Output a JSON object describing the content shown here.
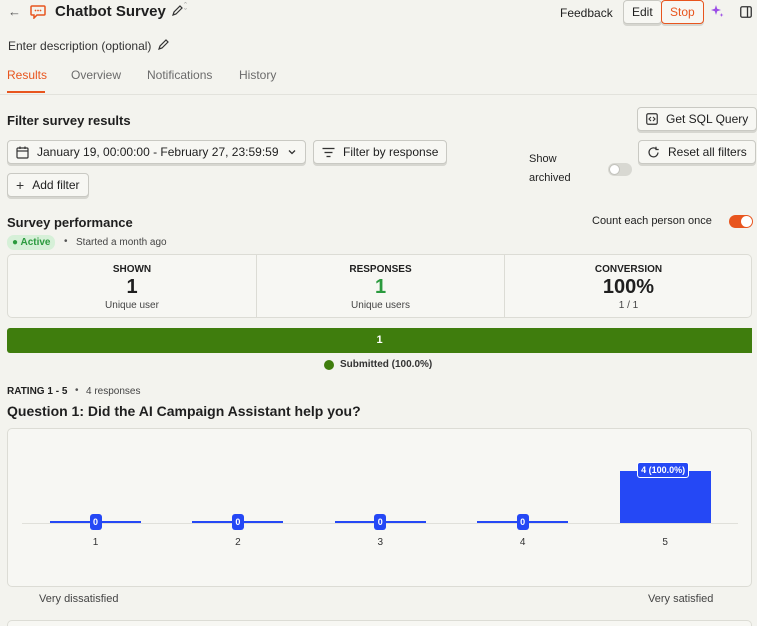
{
  "header": {
    "title": "Chatbot Survey",
    "feedback_label": "Feedback",
    "edit_label": "Edit",
    "stop_label": "Stop",
    "description_placeholder": "Enter description (optional)"
  },
  "tabs": [
    {
      "label": "Results",
      "active": true
    },
    {
      "label": "Overview",
      "active": false
    },
    {
      "label": "Notifications",
      "active": false
    },
    {
      "label": "History",
      "active": false
    }
  ],
  "filters": {
    "heading": "Filter survey results",
    "date_range": "January 19, 00:00:00 - February 27, 23:59:59",
    "filter_by_response": "Filter by response",
    "add_filter": "Add filter",
    "show_archived": "Show archived",
    "show_archived_on": false,
    "get_sql": "Get SQL Query",
    "reset_filters": "Reset all filters"
  },
  "performance": {
    "heading": "Survey performance",
    "status": "Active",
    "started": "Started a month ago",
    "count_each_person_once": "Count each person once",
    "count_each_person_once_on": true,
    "shown_label": "SHOWN",
    "shown_value": "1",
    "shown_sub": "Unique user",
    "responses_label": "RESPONSES",
    "responses_value": "1",
    "responses_sub": "Unique users",
    "conversion_label": "CONVERSION",
    "conversion_value": "100%",
    "conversion_sub": "1 / 1",
    "progress_value": "1",
    "progress_fraction": 1.0,
    "legend": "Submitted (100.0%)"
  },
  "question": {
    "meta_type": "RATING 1 - 5",
    "meta_responses": "4 responses",
    "title": "Question 1: Did the AI Campaign Assistant help you?",
    "low_label": "Very dissatisfied",
    "high_label": "Very satisfied"
  },
  "chart_data": {
    "type": "bar",
    "categories": [
      "1",
      "2",
      "3",
      "4",
      "5"
    ],
    "values": [
      0,
      0,
      0,
      0,
      4
    ],
    "data_labels": [
      "0",
      "0",
      "0",
      "0",
      "4 (100.0%)"
    ],
    "ylim": [
      0,
      4
    ]
  },
  "colors": {
    "accent": "#e8551e",
    "bar": "#2548f5",
    "progress": "#3f7d0d",
    "responses": "#2b9a3e"
  }
}
